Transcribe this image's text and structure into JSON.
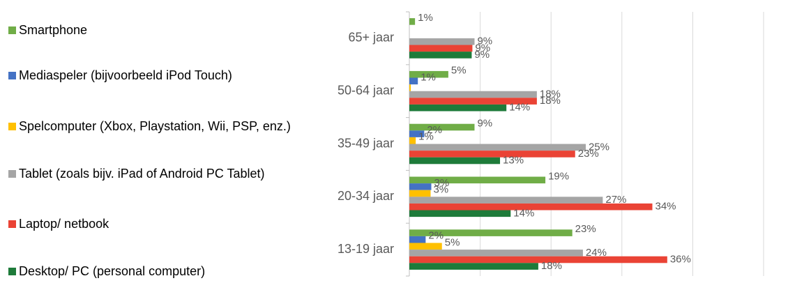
{
  "chart_data": {
    "type": "hbar",
    "categories": [
      "65+ jaar",
      "50-64 jaar",
      "35-49 jaar",
      "20-34 jaar",
      "13-19 jaar"
    ],
    "series": [
      {
        "name": "Smartphone",
        "color": "#70ad47",
        "values": [
          0.8,
          5.5,
          9.2,
          19.2,
          23
        ],
        "value_labels": [
          "1%",
          "5%",
          "9%",
          "19%",
          "23%"
        ]
      },
      {
        "name": "Mediaspeler (bijvoorbeeld iPod Touch)",
        "color": "#4472c4",
        "values": [
          null,
          1.2,
          2.1,
          3.1,
          2.3
        ],
        "value_labels": [
          null,
          "1%",
          "2%",
          "3%",
          "2%"
        ]
      },
      {
        "name": "Spelcomputer (Xbox, Playstation, Wii, PSP, enz.)",
        "color": "#ffc000",
        "values": [
          null,
          0.2,
          0.9,
          3,
          4.6
        ],
        "value_labels": [
          null,
          null,
          "1%",
          "3%",
          "5%"
        ]
      },
      {
        "name": "Tablet (zoals bijv. iPad of Android PC Tablet)",
        "color": "#a5a5a5",
        "values": [
          9.2,
          18,
          24.9,
          27.3,
          24.5
        ],
        "value_labels": [
          "9%",
          "18%",
          "25%",
          "27%",
          "24%"
        ]
      },
      {
        "name": "Laptop/ netbook",
        "color": "#ea4335",
        "values": [
          8.9,
          18,
          23.4,
          34.3,
          36.4
        ],
        "value_labels": [
          "9%",
          "18%",
          "23%",
          "34%",
          "36%"
        ]
      },
      {
        "name": "Desktop/ PC (personal computer)",
        "color": "#1e7b3a",
        "values": [
          8.8,
          13.7,
          12.8,
          14.3,
          18.2
        ],
        "value_labels": [
          "9%",
          "14%",
          "13%",
          "14%",
          "18%"
        ]
      }
    ],
    "xlim": [
      0,
      50
    ],
    "xticks": [
      {
        "value": 0,
        "label": "0%"
      },
      {
        "value": 10,
        "label": "10%"
      },
      {
        "value": 20,
        "label": "20%"
      },
      {
        "value": 30,
        "label": "30%"
      },
      {
        "value": 40,
        "label": "40%"
      },
      {
        "value": 50,
        "label": "50%"
      }
    ],
    "grid": true,
    "legend": "left"
  }
}
